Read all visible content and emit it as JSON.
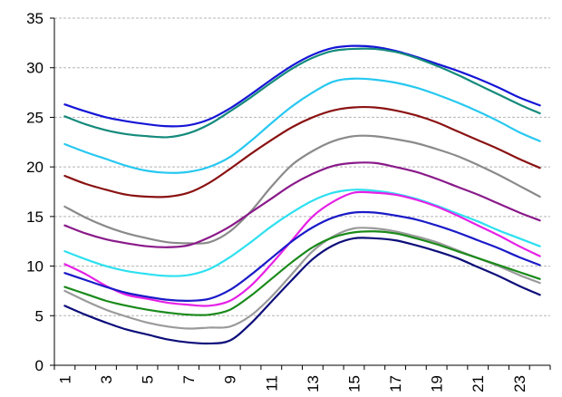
{
  "chart_data": {
    "type": "line",
    "title": "",
    "xlabel": "",
    "ylabel": "",
    "x": [
      1,
      2,
      3,
      4,
      5,
      6,
      7,
      8,
      9,
      10,
      11,
      12,
      13,
      14,
      15,
      16,
      17,
      18,
      19,
      20,
      21,
      22,
      23,
      24
    ],
    "x_tick_labels": [
      "1",
      "3",
      "5",
      "7",
      "9",
      "11",
      "13",
      "15",
      "17",
      "19",
      "21",
      "23"
    ],
    "x_tick_values": [
      1,
      3,
      5,
      7,
      9,
      11,
      13,
      15,
      17,
      19,
      21,
      23
    ],
    "y_tick_labels": [
      "0",
      "5",
      "10",
      "15",
      "20",
      "25",
      "30",
      "35"
    ],
    "y_tick_values": [
      0,
      5,
      10,
      15,
      20,
      25,
      30,
      35
    ],
    "ylim": [
      0,
      35
    ],
    "grid": "horizontal-dashed",
    "legend": "none",
    "series": [
      {
        "color": "#1515d6",
        "values": [
          26.3,
          25.6,
          25.0,
          24.6,
          24.3,
          24.1,
          24.2,
          24.8,
          25.9,
          27.3,
          28.8,
          30.2,
          31.3,
          32.0,
          32.2,
          32.1,
          31.7,
          31.1,
          30.4,
          29.7,
          28.9,
          28.0,
          27.0,
          26.2
        ]
      },
      {
        "color": "#148a7c",
        "values": [
          25.1,
          24.3,
          23.7,
          23.3,
          23.1,
          23.0,
          23.4,
          24.3,
          25.6,
          27.0,
          28.5,
          29.9,
          31.0,
          31.7,
          31.9,
          31.9,
          31.6,
          31.0,
          30.2,
          29.3,
          28.3,
          27.3,
          26.3,
          25.4
        ]
      },
      {
        "color": "#27c8f0",
        "values": [
          22.3,
          21.5,
          20.8,
          20.1,
          19.6,
          19.4,
          19.5,
          20.0,
          21.0,
          22.6,
          24.4,
          26.1,
          27.5,
          28.6,
          28.9,
          28.8,
          28.5,
          28.0,
          27.3,
          26.5,
          25.6,
          24.6,
          23.5,
          22.6
        ]
      },
      {
        "color": "#8a1212",
        "values": [
          19.1,
          18.3,
          17.7,
          17.2,
          17.0,
          17.0,
          17.4,
          18.4,
          19.8,
          21.3,
          22.7,
          24.0,
          25.0,
          25.7,
          26.0,
          26.0,
          25.7,
          25.2,
          24.5,
          23.6,
          22.7,
          21.8,
          20.8,
          19.9
        ]
      },
      {
        "color": "#8a8a8a",
        "values": [
          16.0,
          14.9,
          14.0,
          13.3,
          12.8,
          12.4,
          12.3,
          12.4,
          13.5,
          15.5,
          18.0,
          20.2,
          21.6,
          22.6,
          23.1,
          23.1,
          22.8,
          22.4,
          21.8,
          21.1,
          20.2,
          19.2,
          18.1,
          17.0
        ]
      },
      {
        "color": "#8a1a8a",
        "values": [
          14.1,
          13.3,
          12.7,
          12.3,
          12.0,
          11.9,
          12.1,
          12.9,
          14.0,
          15.4,
          16.8,
          18.2,
          19.3,
          20.1,
          20.4,
          20.4,
          20.0,
          19.5,
          18.8,
          18.0,
          17.2,
          16.3,
          15.4,
          14.6
        ]
      },
      {
        "color": "#2ee0f0",
        "values": [
          11.5,
          10.7,
          10.0,
          9.5,
          9.2,
          9.0,
          9.1,
          9.7,
          10.9,
          12.4,
          14.0,
          15.4,
          16.6,
          17.4,
          17.7,
          17.6,
          17.3,
          16.8,
          16.1,
          15.3,
          14.5,
          13.6,
          12.8,
          12.0
        ]
      },
      {
        "color": "#e620e6",
        "values": [
          10.2,
          9.2,
          8.0,
          7.1,
          6.7,
          6.3,
          6.1,
          6.0,
          6.5,
          8.0,
          10.2,
          12.6,
          15.0,
          16.5,
          17.4,
          17.4,
          17.2,
          16.7,
          16.0,
          15.1,
          14.1,
          13.1,
          12.0,
          11.0
        ]
      },
      {
        "color": "#1a1ac8",
        "values": [
          9.3,
          8.6,
          7.9,
          7.3,
          6.9,
          6.6,
          6.5,
          6.7,
          7.6,
          9.1,
          10.8,
          12.5,
          13.9,
          14.9,
          15.4,
          15.4,
          15.1,
          14.7,
          14.1,
          13.4,
          12.6,
          11.8,
          10.9,
          10.1
        ]
      },
      {
        "color": "#9a9a9a",
        "values": [
          7.5,
          6.5,
          5.6,
          4.9,
          4.3,
          3.9,
          3.7,
          3.8,
          3.9,
          5.0,
          6.9,
          9.2,
          11.5,
          13.0,
          13.8,
          13.8,
          13.5,
          13.0,
          12.4,
          11.6,
          10.8,
          10.0,
          9.1,
          8.3
        ]
      },
      {
        "color": "#1a8a1a",
        "values": [
          7.9,
          7.2,
          6.5,
          6.0,
          5.6,
          5.3,
          5.1,
          5.1,
          5.6,
          7.0,
          8.7,
          10.4,
          11.9,
          12.9,
          13.4,
          13.5,
          13.3,
          12.8,
          12.2,
          11.5,
          10.8,
          10.1,
          9.4,
          8.7
        ]
      },
      {
        "color": "#0d0d7a",
        "values": [
          6.0,
          5.1,
          4.3,
          3.6,
          3.1,
          2.6,
          2.3,
          2.2,
          2.5,
          4.2,
          6.4,
          8.6,
          10.7,
          12.1,
          12.8,
          12.8,
          12.6,
          12.1,
          11.5,
          10.8,
          9.9,
          9.0,
          8.0,
          7.1
        ]
      }
    ]
  }
}
